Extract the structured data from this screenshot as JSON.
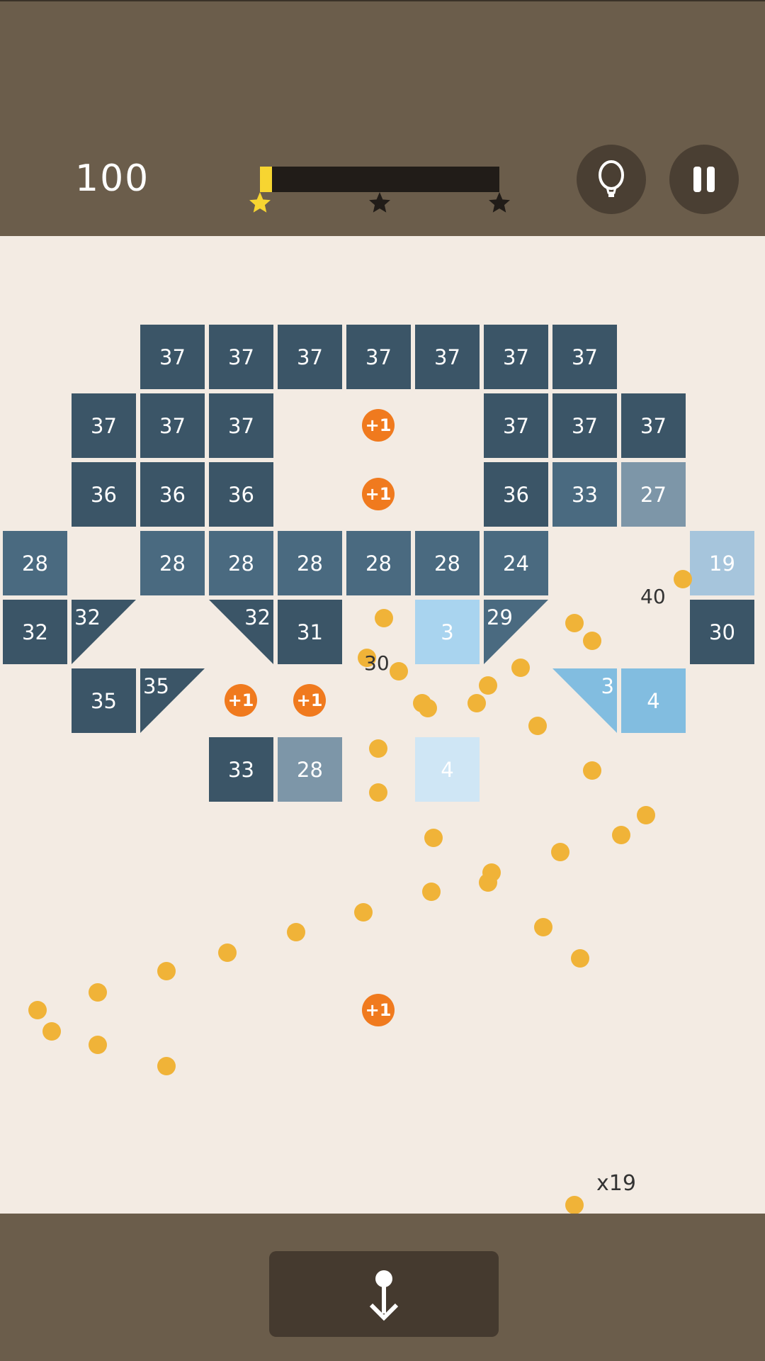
{
  "header": {
    "score": "100",
    "progress_percent": 5,
    "stars": [
      {
        "position_percent": 0,
        "earned": true
      },
      {
        "position_percent": 50,
        "earned": false
      },
      {
        "position_percent": 100,
        "earned": false
      }
    ],
    "hint_icon": "lightbulb-icon",
    "pause_icon": "pause-icon"
  },
  "colors": {
    "bar_bg": "#6b5d4b",
    "playfield": "#f3ebe3",
    "ball": "#f0b338",
    "pickup": "#f07a1e",
    "progress": "#f7d531",
    "dark": "#3b5567",
    "mid": "#4a6a80",
    "grey": "#7d96a8",
    "light": "#a6c5dc",
    "sky": "#a9d4ef",
    "blue": "#82bde0",
    "pale": "#cfe6f5"
  },
  "board": [
    [
      null,
      null,
      {
        "v": "37",
        "s": "dark"
      },
      {
        "v": "37",
        "s": "dark"
      },
      {
        "v": "37",
        "s": "dark"
      },
      {
        "v": "37",
        "s": "dark"
      },
      {
        "v": "37",
        "s": "dark"
      },
      {
        "v": "37",
        "s": "dark"
      },
      {
        "v": "37",
        "s": "dark"
      },
      null,
      null
    ],
    [
      null,
      {
        "v": "37",
        "s": "dark"
      },
      {
        "v": "37",
        "s": "dark"
      },
      {
        "v": "37",
        "s": "dark"
      },
      null,
      {
        "plus": "+1"
      },
      null,
      {
        "v": "37",
        "s": "dark"
      },
      {
        "v": "37",
        "s": "dark"
      },
      {
        "v": "37",
        "s": "dark"
      },
      null
    ],
    [
      null,
      {
        "v": "36",
        "s": "dark"
      },
      {
        "v": "36",
        "s": "dark"
      },
      {
        "v": "36",
        "s": "dark"
      },
      null,
      {
        "plus": "+1"
      },
      null,
      {
        "v": "36",
        "s": "dark"
      },
      {
        "v": "33",
        "s": "mid"
      },
      {
        "v": "27",
        "s": "grey"
      },
      null
    ],
    [
      {
        "v": "28",
        "s": "mid"
      },
      null,
      {
        "v": "28",
        "s": "mid"
      },
      {
        "v": "28",
        "s": "mid"
      },
      {
        "v": "28",
        "s": "mid"
      },
      {
        "v": "28",
        "s": "mid"
      },
      {
        "v": "28",
        "s": "mid"
      },
      {
        "v": "24",
        "s": "mid"
      },
      null,
      null,
      {
        "v": "19",
        "s": "light"
      }
    ],
    [
      {
        "v": "32",
        "s": "dark"
      },
      {
        "v": "32",
        "s": "dark",
        "shape": "tl"
      },
      null,
      {
        "v": "32",
        "s": "dark",
        "shape": "tr"
      },
      {
        "v": "31",
        "s": "dark"
      },
      null,
      {
        "v": "3",
        "s": "sky"
      },
      {
        "v": "29",
        "s": "mid",
        "shape": "tl"
      },
      null,
      null,
      {
        "v": "30",
        "s": "dark"
      }
    ],
    [
      null,
      {
        "v": "35",
        "s": "dark"
      },
      {
        "v": "35",
        "s": "dark",
        "shape": "tl"
      },
      {
        "plus": "+1"
      },
      {
        "plus": "+1"
      },
      null,
      null,
      null,
      {
        "v": "3",
        "s": "blue",
        "shape": "tr"
      },
      {
        "v": "4",
        "s": "blue"
      },
      null
    ],
    [
      null,
      null,
      null,
      {
        "v": "33",
        "s": "dark"
      },
      {
        "v": "28",
        "s": "grey"
      },
      null,
      {
        "v": "4",
        "s": "pale"
      },
      null,
      null,
      null,
      null
    ]
  ],
  "floating_numbers": [
    "40",
    "30"
  ],
  "falling_pickup": "+1",
  "ball_count": "x19",
  "launch_icon": "anchor-icon"
}
